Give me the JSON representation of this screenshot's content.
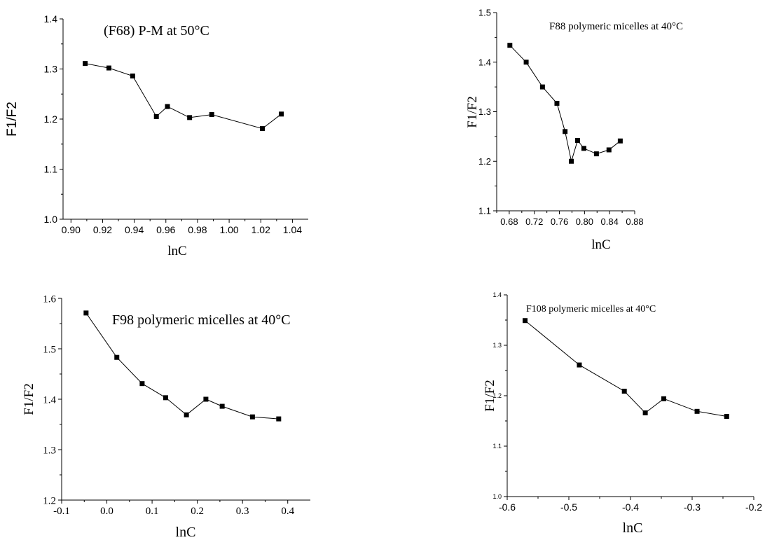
{
  "chart_data": [
    {
      "type": "line",
      "title": "(F68) P-M  at 50°C",
      "xlabel": "lnC",
      "ylabel": "F1/F2",
      "xlim": [
        0.895,
        1.05
      ],
      "ylim": [
        1.0,
        1.4
      ],
      "xticks": [
        "0.90",
        "0.92",
        "0.94",
        "0.96",
        "0.98",
        "1.00",
        "1.02",
        "1.04"
      ],
      "yticks": [
        "1.0",
        "1.1",
        "1.2",
        "1.3",
        "1.4"
      ],
      "marker": "square",
      "grid": false,
      "x": [
        0.909,
        0.924,
        0.939,
        0.954,
        0.961,
        0.975,
        0.989,
        1.021,
        1.033
      ],
      "y": [
        1.311,
        1.302,
        1.286,
        1.205,
        1.225,
        1.203,
        1.209,
        1.181,
        1.21
      ]
    },
    {
      "type": "line",
      "title": "F88 polymeric micelles at 40°C",
      "xlabel": "lnC",
      "ylabel": "F1/F2",
      "xlim": [
        0.66,
        0.88
      ],
      "ylim": [
        1.1,
        1.5
      ],
      "xticks": [
        "0.68",
        "0.72",
        "0.76",
        "0.80",
        "0.84",
        "0.88"
      ],
      "yticks": [
        "1.1",
        "1.2",
        "1.3",
        "1.4",
        "1.5"
      ],
      "marker": "square",
      "grid": false,
      "x": [
        0.681,
        0.707,
        0.733,
        0.756,
        0.769,
        0.779,
        0.789,
        0.799,
        0.819,
        0.839,
        0.857
      ],
      "y": [
        1.434,
        1.4,
        1.35,
        1.317,
        1.26,
        1.2,
        1.242,
        1.226,
        1.215,
        1.223,
        1.241
      ]
    },
    {
      "type": "line",
      "title": "F98 polymeric micelles at 40°C",
      "xlabel": "lnC",
      "ylabel": "F1/F2",
      "xlim": [
        -0.1,
        0.45
      ],
      "ylim": [
        1.2,
        1.6
      ],
      "xticks": [
        "-0.1",
        "0.0",
        "0.1",
        "0.2",
        "0.3",
        "0.4"
      ],
      "yticks": [
        "1.2",
        "1.3",
        "1.4",
        "1.5",
        "1.6"
      ],
      "marker": "square",
      "grid": false,
      "x": [
        -0.046,
        0.022,
        0.078,
        0.13,
        0.176,
        0.219,
        0.255,
        0.322,
        0.38
      ],
      "y": [
        1.571,
        1.483,
        1.431,
        1.403,
        1.369,
        1.4,
        1.386,
        1.365,
        1.361
      ]
    },
    {
      "type": "line",
      "title": "F108 polymeric micelles at 40°C",
      "xlabel": "lnC",
      "ylabel": "F1/F2",
      "xlim": [
        -0.6,
        -0.2
      ],
      "ylim": [
        1.0,
        1.4
      ],
      "xticks": [
        "-0.6",
        "-0.5",
        "-0.4",
        "-0.3",
        "-0.2"
      ],
      "yticks": [
        "1.0",
        "1.1",
        "1.2",
        "1.3",
        "1.4"
      ],
      "marker": "square",
      "grid": false,
      "x": [
        -0.571,
        -0.483,
        -0.41,
        -0.376,
        -0.346,
        -0.292,
        -0.244
      ],
      "y": [
        1.349,
        1.261,
        1.209,
        1.166,
        1.194,
        1.169,
        1.159
      ]
    }
  ]
}
